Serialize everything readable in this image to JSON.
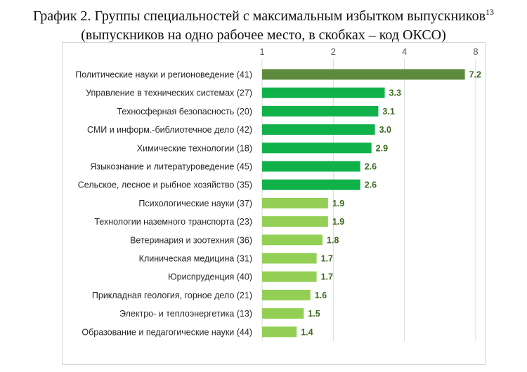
{
  "title": {
    "line1": "График 2. Группы специальностей с максимальным избытком выпускников",
    "footnote": "13",
    "line2": "(выпускников на одно рабочее место, в скобках – код ОКСО)"
  },
  "colors": {
    "dark_green": "#5e8a3c",
    "mid_green": "#11b14a",
    "light_green": "#93cf54",
    "value_label": "#3d6b1f"
  },
  "chart_data": {
    "type": "bar",
    "orientation": "horizontal",
    "x_scale": "log2",
    "xlim": [
      1,
      8
    ],
    "ticks": [
      "1",
      "2",
      "4",
      "8"
    ],
    "tick_values": [
      1,
      2,
      4,
      8
    ],
    "axis_position": "top",
    "grid": true,
    "categories": [
      "Политические науки и регионоведение (41)",
      "Управление в технических системах (27)",
      "Техносферная безопасность (20)",
      "СМИ и информ.-библиотечное дело (42)",
      "Химические технологии (18)",
      "Языкознание и литературоведение (45)",
      "Сельское, лесное и рыбное хозяйство (35)",
      "Психологические науки (37)",
      "Технологии наземного транспорта (23)",
      "Ветеринария и зоотехния (36)",
      "Клиническая медицина (31)",
      "Юриспруденция (40)",
      "Прикладная геология, горное дело (21)",
      "Электро- и теплоэнергетика (13)",
      "Образование и педагогические науки (44)"
    ],
    "values": [
      7.2,
      3.3,
      3.1,
      3.0,
      2.9,
      2.6,
      2.6,
      1.9,
      1.9,
      1.8,
      1.7,
      1.7,
      1.6,
      1.5,
      1.4
    ],
    "value_labels": [
      "7.2",
      "3.3",
      "3.1",
      "3.0",
      "2.9",
      "2.6",
      "2.6",
      "1.9",
      "1.9",
      "1.8",
      "1.7",
      "1.7",
      "1.6",
      "1.5",
      "1.4"
    ],
    "bar_color_groups": [
      "dark_green",
      "mid_green",
      "mid_green",
      "mid_green",
      "mid_green",
      "mid_green",
      "mid_green",
      "light_green",
      "light_green",
      "light_green",
      "light_green",
      "light_green",
      "light_green",
      "light_green",
      "light_green"
    ]
  }
}
